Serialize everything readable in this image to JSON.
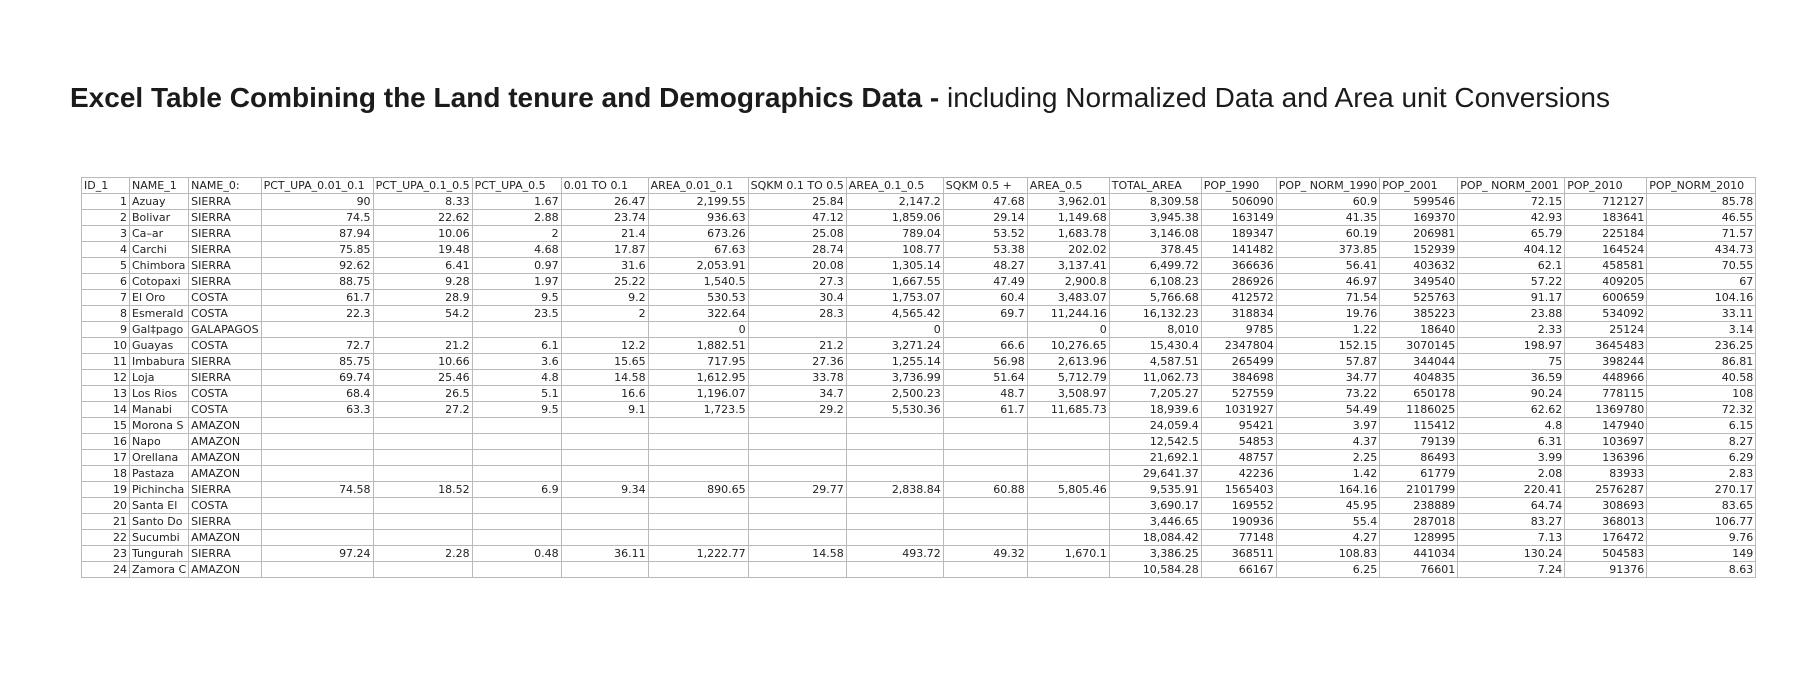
{
  "title": {
    "bold": "Excel Table Combining the Land tenure and Demographics Data -",
    "rest": "including Normalized Data and Area unit Conversions"
  },
  "table": {
    "headers": [
      "ID_1",
      "NAME_1",
      "NAME_0:",
      "PCT_UPA_0.01_0.1",
      "PCT_UPA_0.1_0.5",
      "PCT_UPA_0.5",
      "0.01 TO 0.1",
      "AREA_0.01_0.1",
      "SQKM 0.1 TO 0.5",
      "AREA_0.1_0.5",
      "SQKM 0.5 +",
      "AREA_0.5",
      "TOTAL_AREA",
      "POP_1990",
      "POP_ NORM_1990",
      "POP_2001",
      "POP_ NORM_2001",
      "POP_2010",
      "POP_NORM_2010"
    ],
    "rows": [
      [
        "1",
        "Azuay",
        "SIERRA",
        "90",
        "8.33",
        "1.67",
        "26.47",
        "2,199.55",
        "25.84",
        "2,147.2",
        "47.68",
        "3,962.01",
        "8,309.58",
        "506090",
        "60.9",
        "599546",
        "72.15",
        "712127",
        "85.78"
      ],
      [
        "2",
        "Bolivar",
        "SIERRA",
        "74.5",
        "22.62",
        "2.88",
        "23.74",
        "936.63",
        "47.12",
        "1,859.06",
        "29.14",
        "1,149.68",
        "3,945.38",
        "163149",
        "41.35",
        "169370",
        "42.93",
        "183641",
        "46.55"
      ],
      [
        "3",
        "Ca–ar",
        "SIERRA",
        "87.94",
        "10.06",
        "2",
        "21.4",
        "673.26",
        "25.08",
        "789.04",
        "53.52",
        "1,683.78",
        "3,146.08",
        "189347",
        "60.19",
        "206981",
        "65.79",
        "225184",
        "71.57"
      ],
      [
        "4",
        "Carchi",
        "SIERRA",
        "75.85",
        "19.48",
        "4.68",
        "17.87",
        "67.63",
        "28.74",
        "108.77",
        "53.38",
        "202.02",
        "378.45",
        "141482",
        "373.85",
        "152939",
        "404.12",
        "164524",
        "434.73"
      ],
      [
        "5",
        "Chimbora",
        "SIERRA",
        "92.62",
        "6.41",
        "0.97",
        "31.6",
        "2,053.91",
        "20.08",
        "1,305.14",
        "48.27",
        "3,137.41",
        "6,499.72",
        "366636",
        "56.41",
        "403632",
        "62.1",
        "458581",
        "70.55"
      ],
      [
        "6",
        "Cotopaxi",
        "SIERRA",
        "88.75",
        "9.28",
        "1.97",
        "25.22",
        "1,540.5",
        "27.3",
        "1,667.55",
        "47.49",
        "2,900.8",
        "6,108.23",
        "286926",
        "46.97",
        "349540",
        "57.22",
        "409205",
        "67"
      ],
      [
        "7",
        "El Oro",
        "COSTA",
        "61.7",
        "28.9",
        "9.5",
        "9.2",
        "530.53",
        "30.4",
        "1,753.07",
        "60.4",
        "3,483.07",
        "5,766.68",
        "412572",
        "71.54",
        "525763",
        "91.17",
        "600659",
        "104.16"
      ],
      [
        "8",
        "Esmerald",
        "COSTA",
        "22.3",
        "54.2",
        "23.5",
        "2",
        "322.64",
        "28.3",
        "4,565.42",
        "69.7",
        "11,244.16",
        "16,132.23",
        "318834",
        "19.76",
        "385223",
        "23.88",
        "534092",
        "33.11"
      ],
      [
        "9",
        "Gal‡pago",
        "GALAPAGOS",
        "",
        "",
        "",
        "",
        "0",
        "",
        "0",
        "",
        "0",
        "8,010",
        "9785",
        "1.22",
        "18640",
        "2.33",
        "25124",
        "3.14"
      ],
      [
        "10",
        "Guayas",
        "COSTA",
        "72.7",
        "21.2",
        "6.1",
        "12.2",
        "1,882.51",
        "21.2",
        "3,271.24",
        "66.6",
        "10,276.65",
        "15,430.4",
        "2347804",
        "152.15",
        "3070145",
        "198.97",
        "3645483",
        "236.25"
      ],
      [
        "11",
        "Imbabura",
        "SIERRA",
        "85.75",
        "10.66",
        "3.6",
        "15.65",
        "717.95",
        "27.36",
        "1,255.14",
        "56.98",
        "2,613.96",
        "4,587.51",
        "265499",
        "57.87",
        "344044",
        "75",
        "398244",
        "86.81"
      ],
      [
        "12",
        "Loja",
        "SIERRA",
        "69.74",
        "25.46",
        "4.8",
        "14.58",
        "1,612.95",
        "33.78",
        "3,736.99",
        "51.64",
        "5,712.79",
        "11,062.73",
        "384698",
        "34.77",
        "404835",
        "36.59",
        "448966",
        "40.58"
      ],
      [
        "13",
        "Los Rios",
        "COSTA",
        "68.4",
        "26.5",
        "5.1",
        "16.6",
        "1,196.07",
        "34.7",
        "2,500.23",
        "48.7",
        "3,508.97",
        "7,205.27",
        "527559",
        "73.22",
        "650178",
        "90.24",
        "778115",
        "108"
      ],
      [
        "14",
        "Manabi",
        "COSTA",
        "63.3",
        "27.2",
        "9.5",
        "9.1",
        "1,723.5",
        "29.2",
        "5,530.36",
        "61.7",
        "11,685.73",
        "18,939.6",
        "1031927",
        "54.49",
        "1186025",
        "62.62",
        "1369780",
        "72.32"
      ],
      [
        "15",
        "Morona S",
        "AMAZON",
        "",
        "",
        "",
        "",
        "",
        "",
        "",
        "",
        "",
        "24,059.4",
        "95421",
        "3.97",
        "115412",
        "4.8",
        "147940",
        "6.15"
      ],
      [
        "16",
        "Napo",
        "AMAZON",
        "",
        "",
        "",
        "",
        "",
        "",
        "",
        "",
        "",
        "12,542.5",
        "54853",
        "4.37",
        "79139",
        "6.31",
        "103697",
        "8.27"
      ],
      [
        "17",
        "Orellana",
        "AMAZON",
        "",
        "",
        "",
        "",
        "",
        "",
        "",
        "",
        "",
        "21,692.1",
        "48757",
        "2.25",
        "86493",
        "3.99",
        "136396",
        "6.29"
      ],
      [
        "18",
        "Pastaza",
        "AMAZON",
        "",
        "",
        "",
        "",
        "",
        "",
        "",
        "",
        "",
        "29,641.37",
        "42236",
        "1.42",
        "61779",
        "2.08",
        "83933",
        "2.83"
      ],
      [
        "19",
        "Pichincha",
        "SIERRA",
        "74.58",
        "18.52",
        "6.9",
        "9.34",
        "890.65",
        "29.77",
        "2,838.84",
        "60.88",
        "5,805.46",
        "9,535.91",
        "1565403",
        "164.16",
        "2101799",
        "220.41",
        "2576287",
        "270.17"
      ],
      [
        "20",
        "Santa El",
        "COSTA",
        "",
        "",
        "",
        "",
        "",
        "",
        "",
        "",
        "",
        "3,690.17",
        "169552",
        "45.95",
        "238889",
        "64.74",
        "308693",
        "83.65"
      ],
      [
        "21",
        "Santo Do",
        "SIERRA",
        "",
        "",
        "",
        "",
        "",
        "",
        "",
        "",
        "",
        "3,446.65",
        "190936",
        "55.4",
        "287018",
        "83.27",
        "368013",
        "106.77"
      ],
      [
        "22",
        "Sucumbi",
        "AMAZON",
        "",
        "",
        "",
        "",
        "",
        "",
        "",
        "",
        "",
        "18,084.42",
        "77148",
        "4.27",
        "128995",
        "7.13",
        "176472",
        "9.76"
      ],
      [
        "23",
        "Tungurah",
        "SIERRA",
        "97.24",
        "2.28",
        "0.48",
        "36.11",
        "1,222.77",
        "14.58",
        "493.72",
        "49.32",
        "1,670.1",
        "3,386.25",
        "368511",
        "108.83",
        "441034",
        "130.24",
        "504583",
        "149"
      ],
      [
        "24",
        "Zamora C",
        "AMAZON",
        "",
        "",
        "",
        "",
        "",
        "",
        "",
        "",
        "",
        "10,584.28",
        "66167",
        "6.25",
        "76601",
        "7.24",
        "91376",
        "8.63"
      ]
    ]
  }
}
